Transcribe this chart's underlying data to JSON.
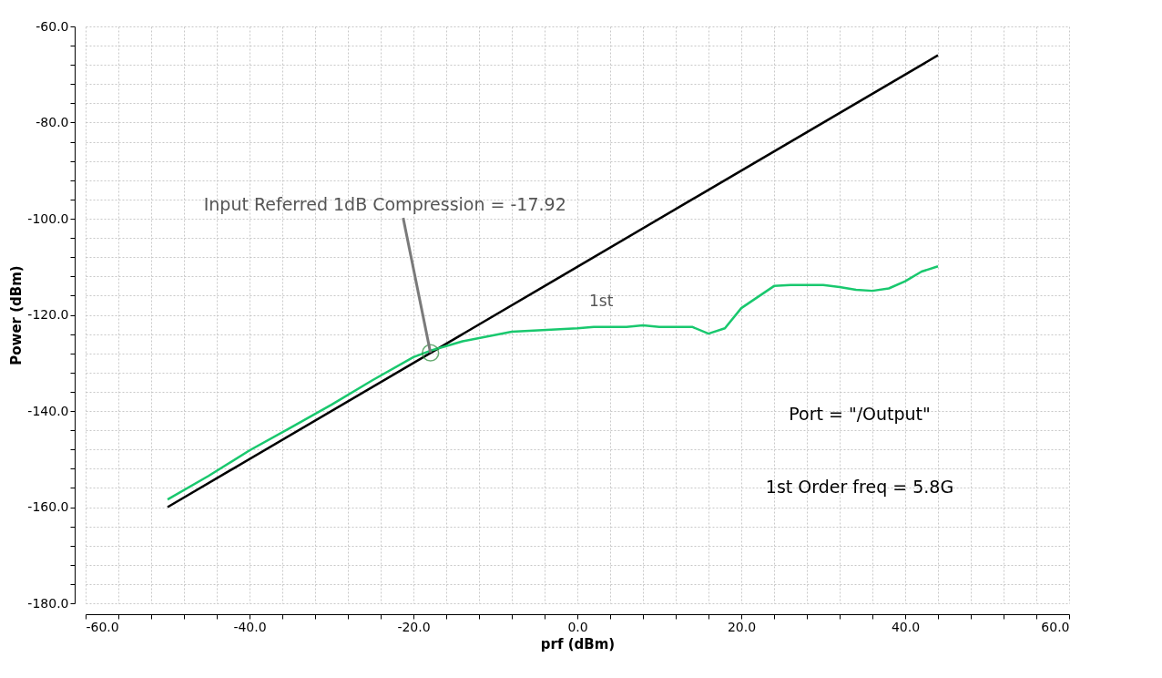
{
  "chart_data": {
    "type": "line",
    "xlabel": "prf (dBm)",
    "ylabel": "Power (dBm)",
    "x": [
      -50,
      -3,
      44
    ],
    "series": [
      {
        "name": "1st",
        "color": "#000000",
        "values": [
          -160,
          -113,
          -66
        ]
      },
      {
        "color": "#19c86e",
        "x": [
          -50,
          -45,
          -40,
          -35,
          -30,
          -25,
          -20,
          -18,
          -14,
          -8,
          0,
          2,
          6,
          8,
          10,
          14,
          16,
          18,
          20,
          24,
          26,
          30,
          32,
          34,
          36,
          38,
          40,
          42,
          44
        ],
        "values": [
          -158.4,
          -153.5,
          -148.2,
          -143.5,
          -138.7,
          -133.6,
          -128.8,
          -127.5,
          -125.5,
          -123.5,
          -122.8,
          -122.5,
          -122.5,
          -122.2,
          -122.5,
          -122.5,
          -123.9,
          -122.8,
          -118.6,
          -114.0,
          -113.8,
          -113.8,
          -114.2,
          -114.8,
          -115.0,
          -114.5,
          -113.0,
          -111.0,
          -109.9
        ]
      }
    ],
    "xlim": [
      -60,
      60
    ],
    "ylim": [
      -180,
      -60
    ],
    "xticks": [
      {
        "value": -60,
        "label": "-60.0"
      },
      {
        "value": -56,
        "label": null
      },
      {
        "value": -52,
        "label": null
      },
      {
        "value": -48,
        "label": null
      },
      {
        "value": -44,
        "label": null
      },
      {
        "value": -40,
        "label": "-40.0"
      },
      {
        "value": -36,
        "label": null
      },
      {
        "value": -32,
        "label": null
      },
      {
        "value": -28,
        "label": null
      },
      {
        "value": -24,
        "label": null
      },
      {
        "value": -20,
        "label": "-20.0"
      },
      {
        "value": -16,
        "label": null
      },
      {
        "value": -12,
        "label": null
      },
      {
        "value": -8,
        "label": null
      },
      {
        "value": -4,
        "label": null
      },
      {
        "value": 0,
        "label": "0.0"
      },
      {
        "value": 4,
        "label": null
      },
      {
        "value": 8,
        "label": null
      },
      {
        "value": 12,
        "label": null
      },
      {
        "value": 16,
        "label": null
      },
      {
        "value": 20,
        "label": "20.0"
      },
      {
        "value": 24,
        "label": null
      },
      {
        "value": 28,
        "label": null
      },
      {
        "value": 32,
        "label": null
      },
      {
        "value": 36,
        "label": null
      },
      {
        "value": 40,
        "label": "40.0"
      },
      {
        "value": 44,
        "label": null
      },
      {
        "value": 48,
        "label": null
      },
      {
        "value": 52,
        "label": null
      },
      {
        "value": 56,
        "label": null
      },
      {
        "value": 60,
        "label": "60.0"
      }
    ],
    "yticks": [
      {
        "value": -180,
        "label": "-180.0"
      },
      {
        "value": -176,
        "label": null
      },
      {
        "value": -172,
        "label": null
      },
      {
        "value": -168,
        "label": null
      },
      {
        "value": -164,
        "label": null
      },
      {
        "value": -160,
        "label": "-160.0"
      },
      {
        "value": -156,
        "label": null
      },
      {
        "value": -152,
        "label": null
      },
      {
        "value": -148,
        "label": null
      },
      {
        "value": -144,
        "label": null
      },
      {
        "value": -140,
        "label": "-140.0"
      },
      {
        "value": -136,
        "label": null
      },
      {
        "value": -132,
        "label": null
      },
      {
        "value": -128,
        "label": null
      },
      {
        "value": -124,
        "label": null
      },
      {
        "value": -120,
        "label": "-120.0"
      },
      {
        "value": -116,
        "label": null
      },
      {
        "value": -112,
        "label": null
      },
      {
        "value": -108,
        "label": null
      },
      {
        "value": -104,
        "label": null
      },
      {
        "value": -100,
        "label": "-100.0"
      },
      {
        "value": -96,
        "label": null
      },
      {
        "value": -92,
        "label": null
      },
      {
        "value": -88,
        "label": null
      },
      {
        "value": -84,
        "label": null
      },
      {
        "value": -80,
        "label": "-80.0"
      },
      {
        "value": -76,
        "label": null
      },
      {
        "value": -72,
        "label": null
      },
      {
        "value": -68,
        "label": null
      },
      {
        "value": -64,
        "label": null
      },
      {
        "value": -60,
        "label": "-60.0"
      }
    ],
    "grid": true,
    "legend": false,
    "annotations": [
      {
        "text": "Input Referred 1dB Compression = -17.92",
        "x": -17.92,
        "y": -127.9
      },
      "Port = \"/Output\"",
      "1st Order freq = 5.8G"
    ]
  }
}
